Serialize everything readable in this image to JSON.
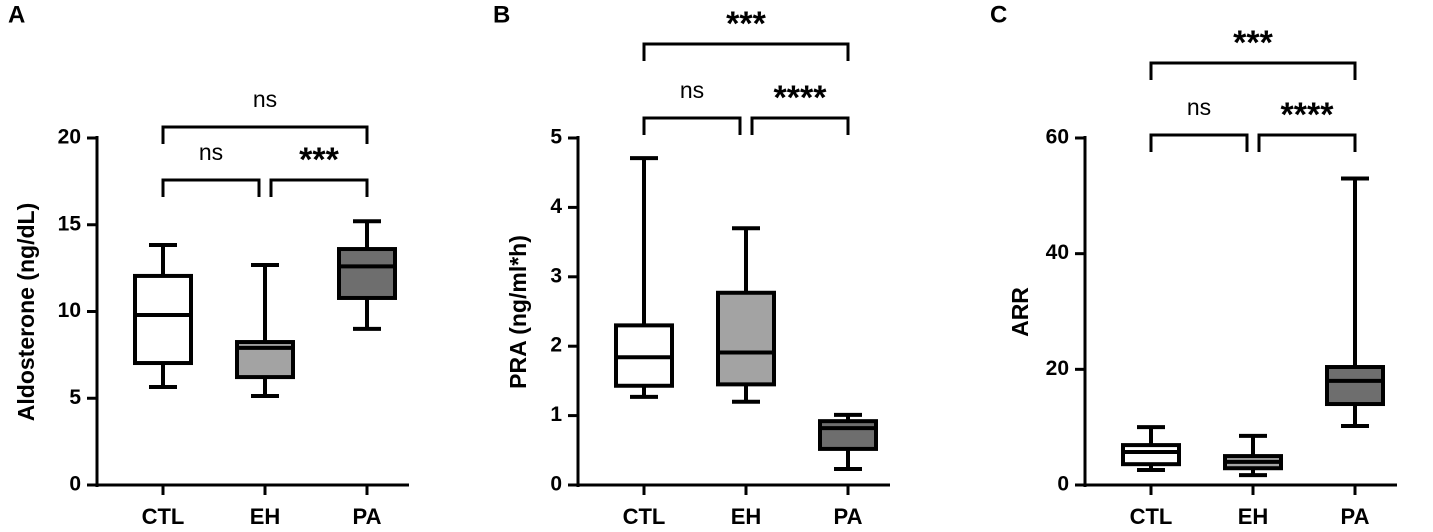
{
  "chart_data": [
    {
      "type": "box",
      "panel": "A",
      "ylabel": "Aldosterone (ng/dL)",
      "categories": [
        "CTL",
        "EH",
        "PA"
      ],
      "colors": [
        "#ffffff",
        "#a3a3a3",
        "#6e6e6e"
      ],
      "min": [
        5.65,
        5.13,
        9.0
      ],
      "q1": [
        7.03,
        6.22,
        10.78
      ],
      "median": [
        9.8,
        7.9,
        12.6
      ],
      "q3": [
        12.05,
        8.24,
        13.6
      ],
      "max": [
        13.83,
        12.68,
        15.2
      ],
      "ylim": [
        0,
        20
      ],
      "yticks": [
        0,
        5,
        10,
        15,
        20
      ],
      "comparisons": [
        {
          "pair": [
            "CTL",
            "EH"
          ],
          "label": "ns"
        },
        {
          "pair": [
            "EH",
            "PA"
          ],
          "label": "***"
        },
        {
          "pair": [
            "CTL",
            "PA"
          ],
          "label": "ns"
        }
      ]
    },
    {
      "type": "box",
      "panel": "B",
      "ylabel": "PRA (ng/ml*h)",
      "categories": [
        "CTL",
        "EH",
        "PA"
      ],
      "colors": [
        "#ffffff",
        "#a3a3a3",
        "#6e6e6e"
      ],
      "min": [
        1.27,
        1.2,
        0.23
      ],
      "q1": [
        1.43,
        1.45,
        0.52
      ],
      "median": [
        1.84,
        1.91,
        0.82
      ],
      "q3": [
        2.3,
        2.77,
        0.92
      ],
      "max": [
        4.71,
        3.7,
        1.01
      ],
      "ylim": [
        0,
        5
      ],
      "yticks": [
        0,
        1,
        2,
        3,
        4,
        5
      ],
      "comparisons": [
        {
          "pair": [
            "CTL",
            "EH"
          ],
          "label": "ns"
        },
        {
          "pair": [
            "EH",
            "PA"
          ],
          "label": "****"
        },
        {
          "pair": [
            "CTL",
            "PA"
          ],
          "label": "***"
        }
      ]
    },
    {
      "type": "box",
      "panel": "C",
      "ylabel": "ARR",
      "categories": [
        "CTL",
        "EH",
        "PA"
      ],
      "colors": [
        "#ffffff",
        "#a3a3a3",
        "#6e6e6e"
      ],
      "min": [
        2.6,
        1.7,
        10.2
      ],
      "q1": [
        3.6,
        2.9,
        14.0
      ],
      "median": [
        5.7,
        4.0,
        18.0
      ],
      "q3": [
        6.9,
        5.0,
        20.4
      ],
      "max": [
        10.0,
        8.5,
        53.0
      ],
      "ylim": [
        0,
        60
      ],
      "yticks": [
        0,
        20,
        40,
        60
      ],
      "comparisons": [
        {
          "pair": [
            "CTL",
            "EH"
          ],
          "label": "ns"
        },
        {
          "pair": [
            "EH",
            "PA"
          ],
          "label": "****"
        },
        {
          "pair": [
            "CTL",
            "PA"
          ],
          "label": "***"
        }
      ]
    }
  ]
}
